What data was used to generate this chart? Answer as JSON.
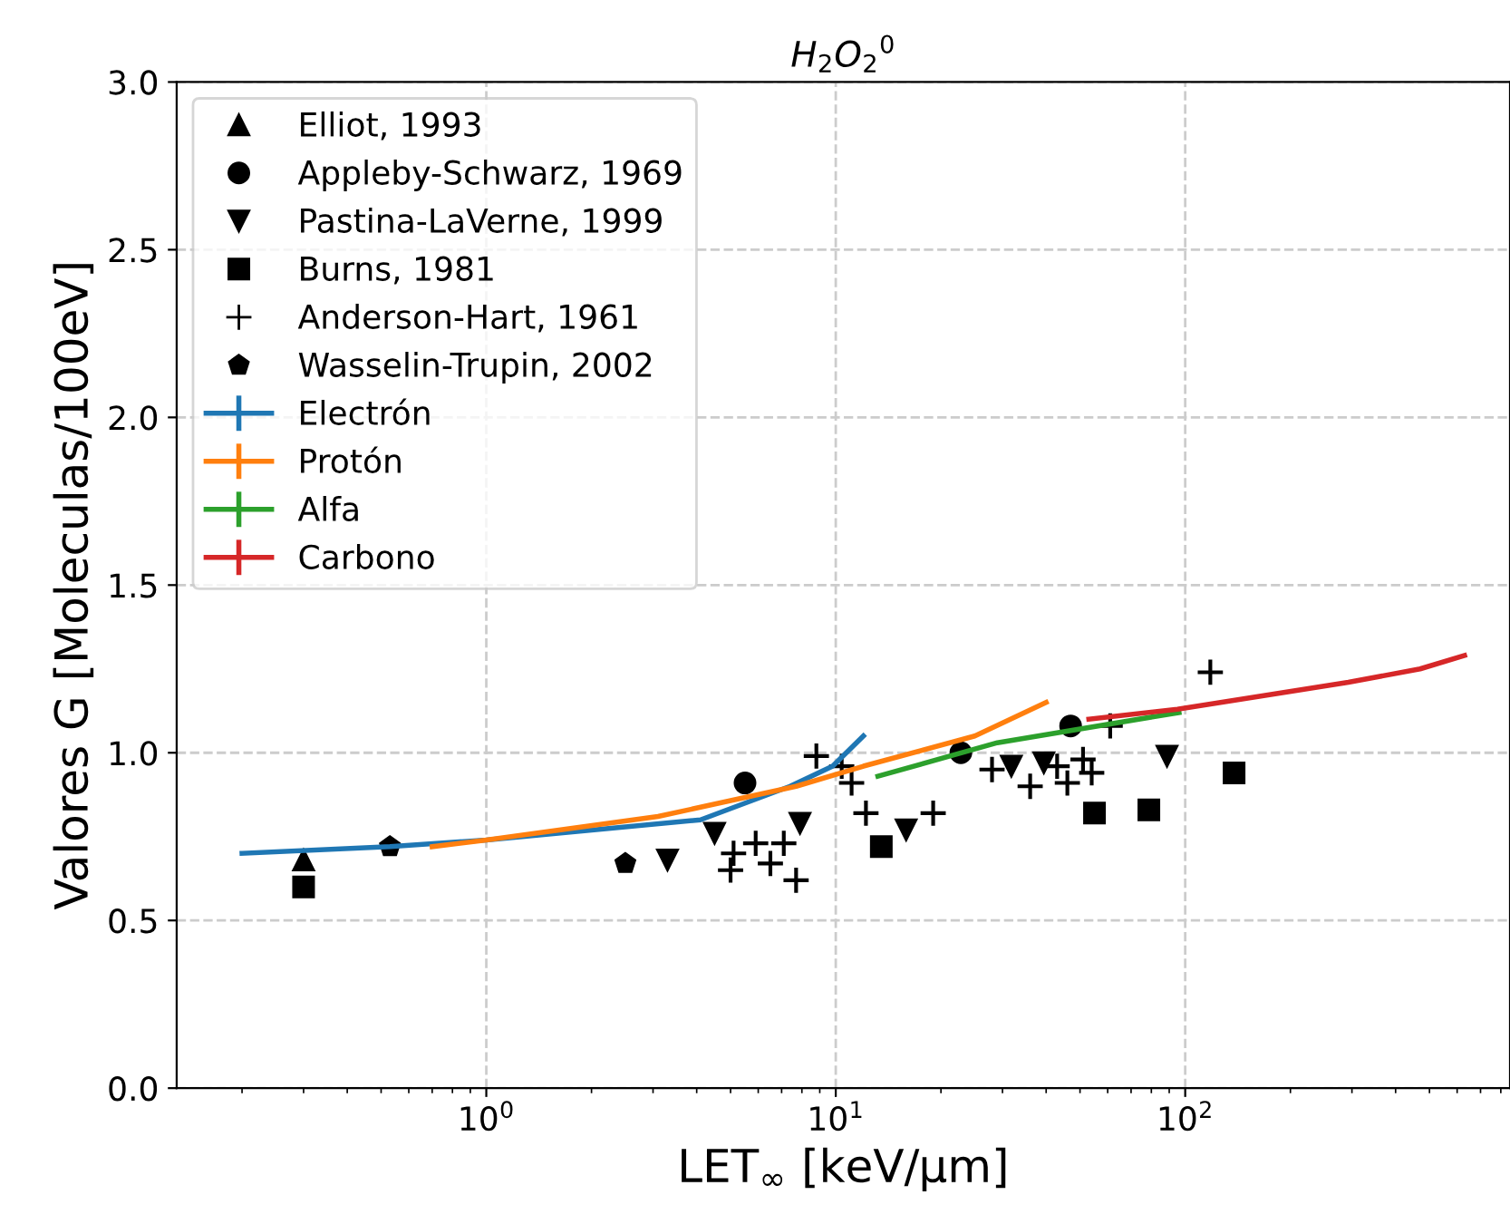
{
  "chart_data": {
    "type": "scatter",
    "title": "H$_{2}$O$_{2}$$^{0}$",
    "xlabel": "LET$_{∞}$ [keV/µm]",
    "ylabel": "Valores G [Moleculas/100eV]",
    "log": "x",
    "xlim": [
      0.13,
      850
    ],
    "xticks": [
      {
        "value": 1,
        "label": "10$^{0}$"
      },
      {
        "value": 10,
        "label": "10$^{1}$"
      },
      {
        "value": 100,
        "label": "10$^{2}$"
      }
    ],
    "ylim": [
      0,
      3.0
    ],
    "yticks": [
      {
        "value": 0,
        "label": "0.0"
      },
      {
        "value": 0.5,
        "label": "0.5"
      },
      {
        "value": 1.0,
        "label": "1.0"
      },
      {
        "value": 1.5,
        "label": "1.5"
      },
      {
        "value": 2.0,
        "label": "2.0"
      },
      {
        "value": 2.5,
        "label": "2.5"
      },
      {
        "value": 3.0,
        "label": "3.0"
      }
    ],
    "grid": true,
    "legend": "top left",
    "series": [
      {
        "name": "Elliot, 1993",
        "marker": "triangle",
        "color": "#000000",
        "x": [
          0.3
        ],
        "values": [
          0.68
        ]
      },
      {
        "name": "Appleby-Schwarz, 1969",
        "marker": "circle",
        "color": "#000000",
        "x": [
          5.5,
          22.8,
          47
        ],
        "values": [
          0.91,
          1.0,
          1.08
        ]
      },
      {
        "name": "Pastina-LaVerne, 1999",
        "marker": "triangle_down",
        "color": "#000000",
        "x": [
          3.3,
          4.5,
          7.9,
          15.9,
          31.8,
          39.4,
          88.7
        ],
        "values": [
          0.68,
          0.76,
          0.79,
          0.77,
          0.96,
          0.97,
          0.99
        ]
      },
      {
        "name": "Burns, 1981",
        "marker": "square",
        "color": "#000000",
        "x": [
          0.3,
          13.5,
          55,
          78.7,
          138
        ],
        "values": [
          0.6,
          0.72,
          0.82,
          0.83,
          0.94
        ]
      },
      {
        "name": "Anderson-Hart, 1961",
        "marker": "cross",
        "color": "#000000",
        "x": [
          8.8,
          5.0,
          5.1,
          5.9,
          6.5,
          7.1,
          7.7,
          11.1,
          10.4,
          12.2,
          19,
          28,
          36,
          43,
          46,
          51,
          54,
          61,
          118
        ],
        "values": [
          0.99,
          0.65,
          0.7,
          0.73,
          0.67,
          0.73,
          0.62,
          0.91,
          0.96,
          0.82,
          0.82,
          0.95,
          0.9,
          0.96,
          0.91,
          0.98,
          0.94,
          1.08,
          1.24
        ]
      },
      {
        "name": "Wasselin-Trupin, 2002",
        "color": "#000000",
        "x": [
          0.53,
          2.5
        ],
        "values": [
          0.72,
          0.67
        ]
      },
      {
        "name": "Electrón",
        "type": "line",
        "color": "#1f77b4",
        "x": [
          0.2,
          0.53,
          1,
          4.1,
          7.4,
          9.8,
          12
        ],
        "values": [
          0.7,
          0.72,
          0.74,
          0.8,
          0.9,
          0.96,
          1.05
        ]
      },
      {
        "name": "Protón",
        "type": "line",
        "color": "#ff7f0e",
        "x": [
          0.7,
          1,
          3.1,
          7.7,
          12,
          25,
          40
        ],
        "values": [
          0.72,
          0.74,
          0.81,
          0.9,
          0.96,
          1.05,
          1.15
        ]
      },
      {
        "name": "Alfa",
        "type": "line",
        "color": "#2ca02c",
        "x": [
          13.2,
          29,
          96
        ],
        "values": [
          0.93,
          1.03,
          1.12
        ]
      },
      {
        "name": "Carbono",
        "type": "line",
        "color": "#d62728",
        "x": [
          53,
          95,
          293,
          470,
          630
        ],
        "values": [
          1.1,
          1.13,
          1.21,
          1.25,
          1.29
        ]
      }
    ]
  }
}
